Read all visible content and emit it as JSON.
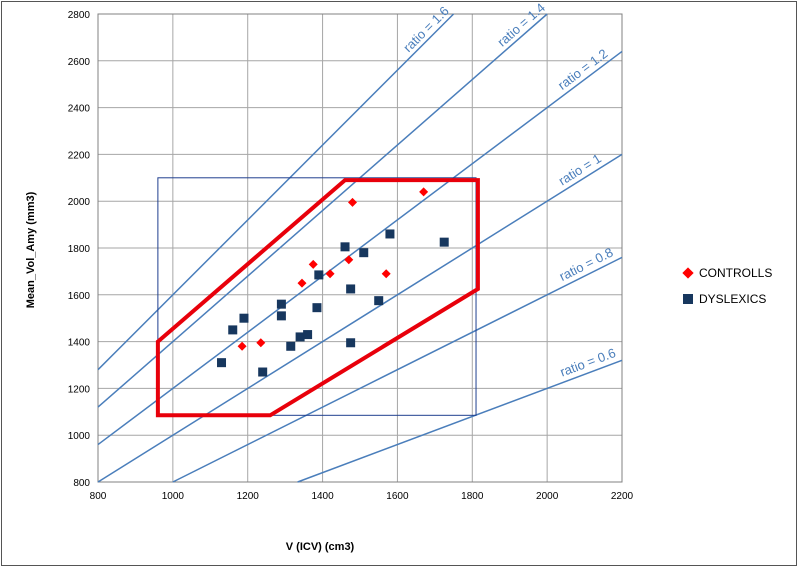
{
  "chart_data": {
    "type": "scatter",
    "xlabel": "V  (ICV)  (cm3)",
    "ylabel": "Mean_Vol_Amy   (mm3)",
    "xlim": [
      800,
      2200
    ],
    "ylim": [
      800,
      2800
    ],
    "xticks": [
      "800",
      "1000",
      "1200",
      "1400",
      "1600",
      "1800",
      "2000",
      "2200"
    ],
    "yticks": [
      "800",
      "1000",
      "1200",
      "1400",
      "1600",
      "1800",
      "2000",
      "2200",
      "2400",
      "2600",
      "2800"
    ],
    "grid": true,
    "legend_position": "right",
    "series": [
      {
        "name": "CONTROLLS",
        "marker": "diamond",
        "color": "#ff0000",
        "points": [
          [
            1185,
            1380
          ],
          [
            1235,
            1395
          ],
          [
            1345,
            1650
          ],
          [
            1375,
            1730
          ],
          [
            1420,
            1690
          ],
          [
            1470,
            1750
          ],
          [
            1480,
            1995
          ],
          [
            1570,
            1690
          ],
          [
            1670,
            2040
          ]
        ]
      },
      {
        "name": "DYSLEXICS",
        "marker": "square",
        "color": "#17375e",
        "points": [
          [
            1130,
            1310
          ],
          [
            1160,
            1450
          ],
          [
            1190,
            1500
          ],
          [
            1240,
            1270
          ],
          [
            1290,
            1560
          ],
          [
            1290,
            1510
          ],
          [
            1315,
            1380
          ],
          [
            1340,
            1420
          ],
          [
            1360,
            1430
          ],
          [
            1385,
            1545
          ],
          [
            1390,
            1685
          ],
          [
            1460,
            1805
          ],
          [
            1475,
            1625
          ],
          [
            1475,
            1395
          ],
          [
            1510,
            1780
          ],
          [
            1550,
            1575
          ],
          [
            1580,
            1860
          ],
          [
            1725,
            1825
          ]
        ]
      }
    ],
    "ratio_lines": [
      {
        "label": "ratio = 1.6",
        "slope": 1.6
      },
      {
        "label": "ratio = 1.4",
        "slope": 1.4
      },
      {
        "label": "ratio = 1.2",
        "slope": 1.2
      },
      {
        "label": "ratio = 1",
        "slope": 1.0
      },
      {
        "label": "ratio = 0.8",
        "slope": 0.8
      },
      {
        "label": "ratio = 0.6",
        "slope": 0.6
      }
    ],
    "ratio_line_color": "#4a7ebb",
    "bounding_box": {
      "x": [
        960,
        1810
      ],
      "y": [
        1085,
        2100
      ],
      "color": "#1f3f8f"
    },
    "hull": {
      "color": "#e8000b",
      "points": [
        [
          960,
          1400
        ],
        [
          1460,
          2090
        ],
        [
          1815,
          2090
        ],
        [
          1815,
          1625
        ],
        [
          1260,
          1085
        ],
        [
          960,
          1085
        ]
      ]
    }
  }
}
